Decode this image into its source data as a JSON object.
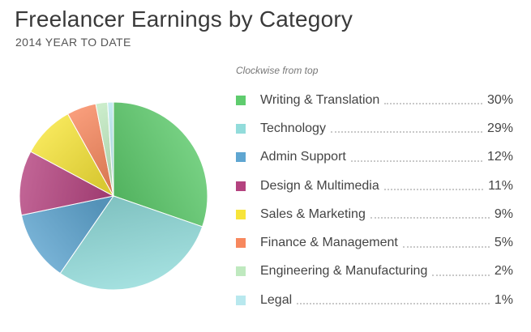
{
  "header": {
    "title": "Freelancer Earnings by Category",
    "subtitle": "2014 YEAR TO DATE"
  },
  "legend": {
    "caption": "Clockwise from top"
  },
  "chart_data": {
    "type": "pie",
    "title": "Freelancer Earnings by Category",
    "subtitle": "2014 YEAR TO DATE",
    "direction": "clockwise from top",
    "legend_placement": "right",
    "categories": [
      "Writing & Translation",
      "Technology",
      "Admin Support",
      "Design & Multimedia",
      "Sales & Marketing",
      "Finance & Management",
      "Engineering & Manufacturing",
      "Legal"
    ],
    "values": [
      30,
      29,
      12,
      11,
      9,
      5,
      2,
      1
    ],
    "labels": [
      "30%",
      "29%",
      "12%",
      "11%",
      "9%",
      "5%",
      "2%",
      "1%"
    ],
    "colors": [
      "#5fcc6e",
      "#92dcdb",
      "#5fa6d1",
      "#b4437f",
      "#f7e43a",
      "#f7885e",
      "#bfe9bf",
      "#b8e8ee"
    ]
  }
}
